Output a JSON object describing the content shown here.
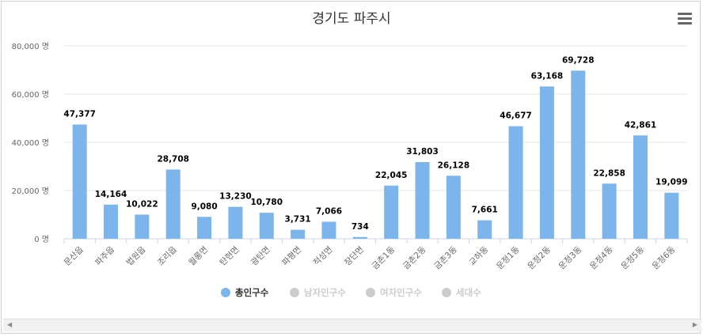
{
  "chart_data": {
    "type": "bar",
    "title": "경기도 파주시",
    "xlabel": "",
    "ylabel": "",
    "ylim": [
      0,
      80000
    ],
    "y_ticks": [
      0,
      20000,
      40000,
      60000,
      80000
    ],
    "y_tick_labels": [
      "0 명",
      "20,000 명",
      "40,000 명",
      "60,000 명",
      "80,000 명"
    ],
    "grid": true,
    "legend_position": "bottom-center",
    "categories": [
      "문산읍",
      "파주읍",
      "법원읍",
      "조리읍",
      "월롱면",
      "탄현면",
      "광탄면",
      "파평면",
      "적성면",
      "장단면",
      "금촌1동",
      "금촌2동",
      "금촌3동",
      "교하동",
      "운정1동",
      "운정2동",
      "운정3동",
      "운정4동",
      "운정5동",
      "운정6동"
    ],
    "series": [
      {
        "name": "총인구수",
        "active": true,
        "color": "#7cb5ec",
        "values": [
          47377,
          14164,
          10022,
          28708,
          9080,
          13230,
          10780,
          3731,
          7066,
          734,
          22045,
          31803,
          26128,
          7661,
          46677,
          63168,
          69728,
          22858,
          42861,
          19099
        ],
        "data_labels": [
          "47,377",
          "14,164",
          "10,022",
          "28,708",
          "9,080",
          "13,230",
          "10,780",
          "3,731",
          "7,066",
          "734",
          "22,045",
          "31,803",
          "26,128",
          "7,661",
          "46,677",
          "63,168",
          "69,728",
          "22,858",
          "42,861",
          "19,099"
        ]
      },
      {
        "name": "남자인구수",
        "active": false,
        "color": "#cccccc"
      },
      {
        "name": "여자인구수",
        "active": false,
        "color": "#cccccc"
      },
      {
        "name": "세대수",
        "active": false,
        "color": "#cccccc"
      }
    ]
  },
  "ui": {
    "menu_icon": "hamburger-menu-icon",
    "scroll_left_glyph": "◀",
    "scroll_right_glyph": "▶",
    "colors": {
      "bar": "#7cb5ec",
      "grid": "#e6e6e6",
      "axis_text": "#666666",
      "legend_active_text": "#333333",
      "legend_inactive_text": "#cccccc"
    }
  }
}
